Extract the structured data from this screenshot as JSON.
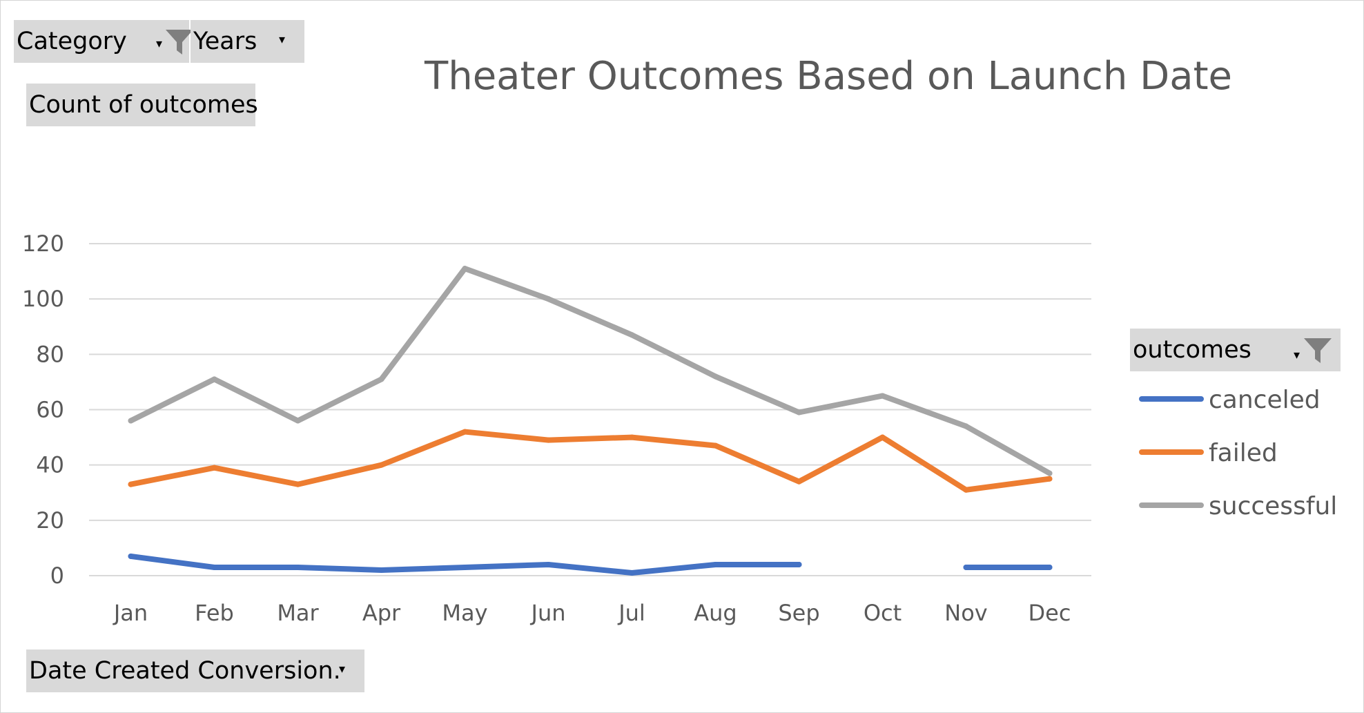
{
  "pivot": {
    "category_label": "Category",
    "years_label": "Years",
    "values_label": "Count of outcomes",
    "axis_field_label": "Date Created Conversion.",
    "legend_field_label": "outcomes"
  },
  "icons": {
    "category_filter": "filter-funnel-icon",
    "dropdown": "dropdown-arrow-icon",
    "legend_filter": "filter-funnel-icon"
  },
  "chart_data": {
    "type": "line",
    "title": "Theater Outcomes Based on Launch Date",
    "categories": [
      "Jan",
      "Feb",
      "Mar",
      "Apr",
      "May",
      "Jun",
      "Jul",
      "Aug",
      "Sep",
      "Oct",
      "Nov",
      "Dec"
    ],
    "ylim": [
      0,
      120
    ],
    "yticks": [
      0,
      20,
      40,
      60,
      80,
      100,
      120
    ],
    "grid": true,
    "legend_position": "right",
    "series": [
      {
        "name": "canceled",
        "color": "#4472c4",
        "values": [
          7,
          3,
          3,
          2,
          3,
          4,
          1,
          4,
          4,
          null,
          3,
          3
        ]
      },
      {
        "name": "failed",
        "color": "#ed7d31",
        "values": [
          33,
          39,
          33,
          40,
          52,
          49,
          50,
          47,
          34,
          50,
          31,
          35
        ]
      },
      {
        "name": "successful",
        "color": "#a5a5a5",
        "values": [
          56,
          71,
          56,
          71,
          111,
          100,
          87,
          72,
          59,
          65,
          54,
          37
        ]
      }
    ]
  }
}
